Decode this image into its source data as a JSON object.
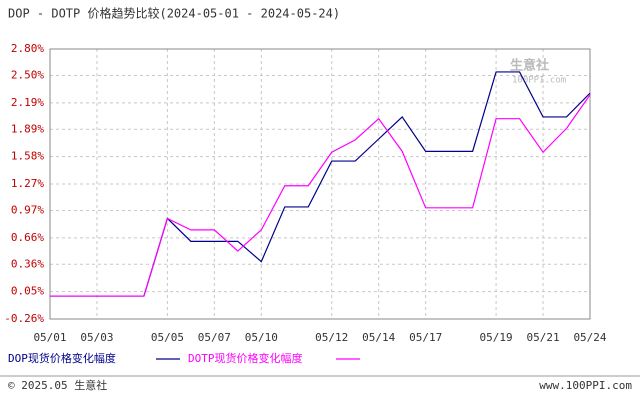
{
  "chart_data": {
    "type": "line",
    "title": "DOP - DOTP 价格趋势比较(2024-05-01 - 2024-05-24)",
    "categories": [
      "05/01",
      null,
      "05/03",
      null,
      null,
      "05/05",
      null,
      "05/07",
      null,
      "05/10",
      null,
      null,
      "05/12",
      null,
      "05/14",
      null,
      "05/17",
      null,
      null,
      "05/19",
      null,
      "05/21",
      null,
      "05/24"
    ],
    "series": [
      {
        "name": "DOP现货价格变化幅度",
        "color": "#00008b",
        "values": [
          0,
          0,
          0,
          0,
          0,
          0.88,
          0.62,
          0.62,
          0.62,
          0.39,
          1.01,
          1.01,
          1.53,
          1.53,
          1.78,
          2.03,
          1.64,
          1.64,
          1.64,
          2.54,
          2.54,
          2.03,
          2.03,
          2.3
        ]
      },
      {
        "name": "DOTP现货价格变化幅度",
        "color": "#ff00ff",
        "values": [
          0,
          0,
          0,
          0,
          0,
          0.88,
          0.75,
          0.75,
          0.51,
          0.75,
          1.25,
          1.25,
          1.63,
          1.77,
          2.01,
          1.64,
          1.0,
          1.0,
          1.0,
          2.01,
          2.01,
          1.63,
          1.9,
          2.28
        ]
      }
    ],
    "ylim": [
      -0.26,
      2.8
    ],
    "yticks": [
      {
        "value": -0.26,
        "label": "-0.26%"
      },
      {
        "value": 0.05,
        "label": "0.05%"
      },
      {
        "value": 0.36,
        "label": "0.36%"
      },
      {
        "value": 0.66,
        "label": "0.66%"
      },
      {
        "value": 0.97,
        "label": "0.97%"
      },
      {
        "value": 1.27,
        "label": "1.27%"
      },
      {
        "value": 1.58,
        "label": "1.58%"
      },
      {
        "value": 1.89,
        "label": "1.89%"
      },
      {
        "value": 2.19,
        "label": "2.19%"
      },
      {
        "value": 2.5,
        "label": "2.50%"
      },
      {
        "value": 2.8,
        "label": "2.80%"
      }
    ],
    "grid": true,
    "watermark": [
      "生意社",
      "100PPI.com"
    ],
    "footer": [
      "© 2025.05 生意社",
      "www.100PPI.com"
    ]
  }
}
